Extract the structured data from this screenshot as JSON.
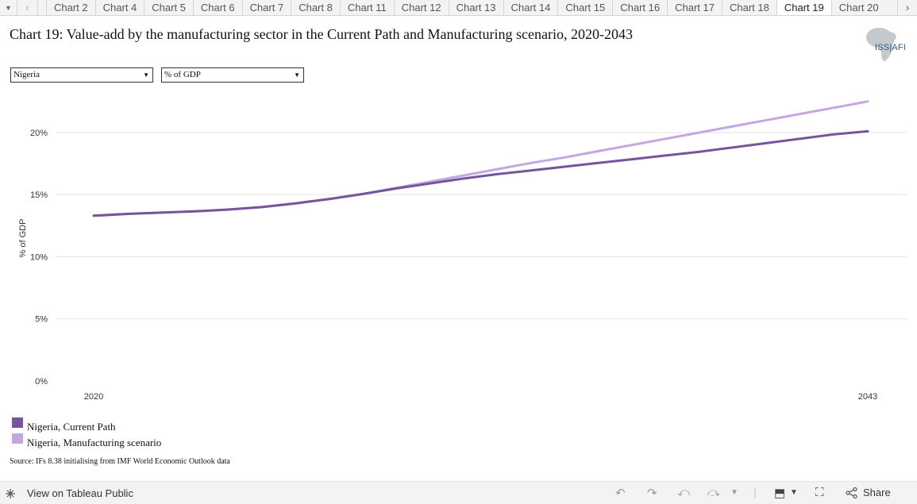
{
  "tabbar": {
    "tabs": [
      "Chart 2",
      "Chart 4",
      "Chart 5",
      "Chart 6",
      "Chart 7",
      "Chart 8",
      "Chart 11",
      "Chart 12",
      "Chart 13",
      "Chart 14",
      "Chart 15",
      "Chart 16",
      "Chart 17",
      "Chart 18",
      "Chart 19",
      "Chart 20"
    ],
    "active": "Chart 19"
  },
  "title": "Chart 19: Value-add by the manufacturing sector in the Current Path and Manufacturing scenario, 2020-2043",
  "logo_text": "ISS|AFI",
  "filters": {
    "country": "Nigeria",
    "measure": "% of GDP"
  },
  "source": "Source: IFs 8.38 initialising from IMF World Economic Outlook data",
  "footer": {
    "view_label": "View on Tableau Public",
    "share_label": "Share"
  },
  "colors": {
    "current_path": "#76569a",
    "manufacturing": "#c4a7e0",
    "grid": "#e6e6e6"
  },
  "chart_data": {
    "type": "line",
    "ylabel": "% of GDP",
    "xlabel": "",
    "x_ticks": [
      "2020",
      "2043"
    ],
    "y_ticks": [
      "0%",
      "5%",
      "10%",
      "15%",
      "20%"
    ],
    "ylim": [
      0,
      23
    ],
    "xlim": [
      2020,
      2043
    ],
    "x": [
      2020,
      2021,
      2022,
      2023,
      2024,
      2025,
      2026,
      2027,
      2028,
      2029,
      2030,
      2031,
      2032,
      2033,
      2034,
      2035,
      2036,
      2037,
      2038,
      2039,
      2040,
      2041,
      2042,
      2043
    ],
    "series": [
      {
        "name": "Nigeria, Current Path",
        "color": "#76569a",
        "values": [
          13.3,
          13.45,
          13.55,
          13.65,
          13.8,
          14.0,
          14.3,
          14.65,
          15.05,
          15.5,
          15.9,
          16.3,
          16.65,
          16.95,
          17.25,
          17.55,
          17.85,
          18.15,
          18.45,
          18.8,
          19.15,
          19.5,
          19.85,
          20.1
        ]
      },
      {
        "name": "Nigeria, Manufacturing scenario",
        "color": "#c4a7e0",
        "values": [
          13.3,
          13.45,
          13.55,
          13.65,
          13.8,
          14.0,
          14.3,
          14.65,
          15.05,
          15.55,
          16.05,
          16.55,
          17.05,
          17.55,
          18.0,
          18.5,
          19.0,
          19.5,
          20.0,
          20.5,
          21.0,
          21.5,
          22.0,
          22.5
        ]
      }
    ]
  }
}
